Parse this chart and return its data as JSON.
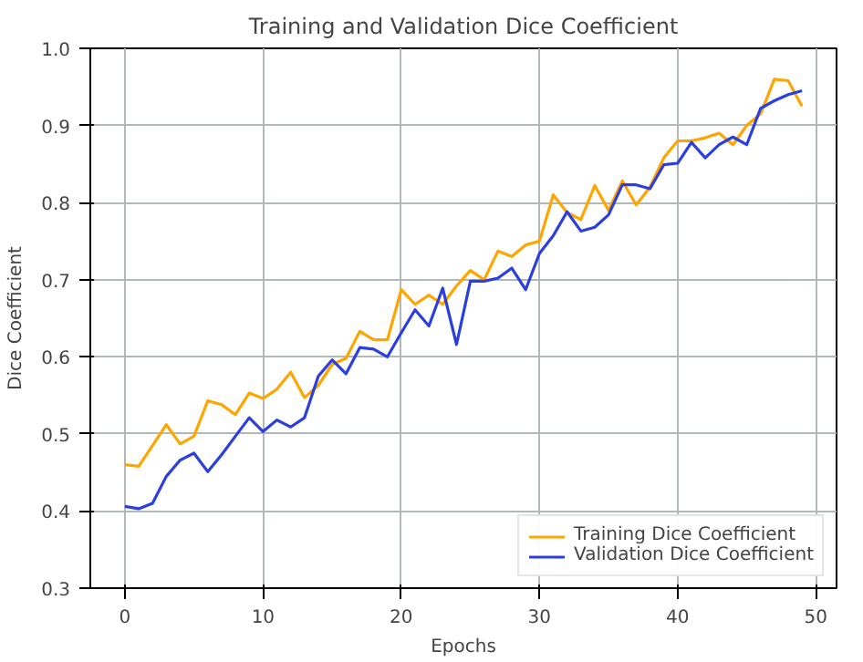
{
  "chart_data": {
    "type": "line",
    "title": "Training and Validation Dice Coefficient",
    "xlabel": "Epochs",
    "ylabel": "Dice Coefficient",
    "x": [
      0,
      1,
      2,
      3,
      4,
      5,
      6,
      7,
      8,
      9,
      10,
      11,
      12,
      13,
      14,
      15,
      16,
      17,
      18,
      19,
      20,
      21,
      22,
      23,
      24,
      25,
      26,
      27,
      28,
      29,
      30,
      31,
      32,
      33,
      34,
      35,
      36,
      37,
      38,
      39,
      40,
      41,
      42,
      43,
      44,
      45,
      46,
      47,
      48,
      49
    ],
    "series": [
      {
        "name": "Training Dice Coefficient",
        "color": "#ffa500",
        "values": [
          0.46,
          0.458,
          0.485,
          0.512,
          0.487,
          0.497,
          0.543,
          0.538,
          0.525,
          0.553,
          0.546,
          0.558,
          0.58,
          0.547,
          0.563,
          0.59,
          0.598,
          0.633,
          0.622,
          0.622,
          0.687,
          0.668,
          0.68,
          0.668,
          0.692,
          0.712,
          0.7,
          0.737,
          0.73,
          0.745,
          0.75,
          0.81,
          0.787,
          0.778,
          0.822,
          0.79,
          0.828,
          0.797,
          0.82,
          0.858,
          0.88,
          0.88,
          0.884,
          0.89,
          0.875,
          0.9,
          0.915,
          0.96,
          0.958,
          0.925
        ]
      },
      {
        "name": "Validation Dice Coefficient",
        "color": "#2b3fe0",
        "values": [
          0.406,
          0.403,
          0.41,
          0.445,
          0.466,
          0.475,
          0.451,
          0.473,
          0.497,
          0.521,
          0.503,
          0.518,
          0.509,
          0.521,
          0.575,
          0.596,
          0.578,
          0.612,
          0.61,
          0.6,
          0.631,
          0.661,
          0.64,
          0.689,
          0.616,
          0.698,
          0.698,
          0.702,
          0.715,
          0.687,
          0.734,
          0.757,
          0.788,
          0.763,
          0.768,
          0.784,
          0.823,
          0.823,
          0.818,
          0.849,
          0.851,
          0.878,
          0.858,
          0.875,
          0.885,
          0.875,
          0.922,
          0.932,
          0.94,
          0.945
        ]
      }
    ],
    "xlim": [
      -2.5,
      51.5
    ],
    "xticks": [
      0,
      10,
      20,
      30,
      40,
      50
    ],
    "ylim": [
      0.3,
      1.0
    ],
    "yticks": [
      0.3,
      0.4,
      0.5,
      0.6,
      0.7,
      0.8,
      0.9,
      {
        "value": 1,
        "label": "1.0"
      }
    ],
    "grid": true,
    "legend": "bottom right",
    "line_style": "solid"
  }
}
